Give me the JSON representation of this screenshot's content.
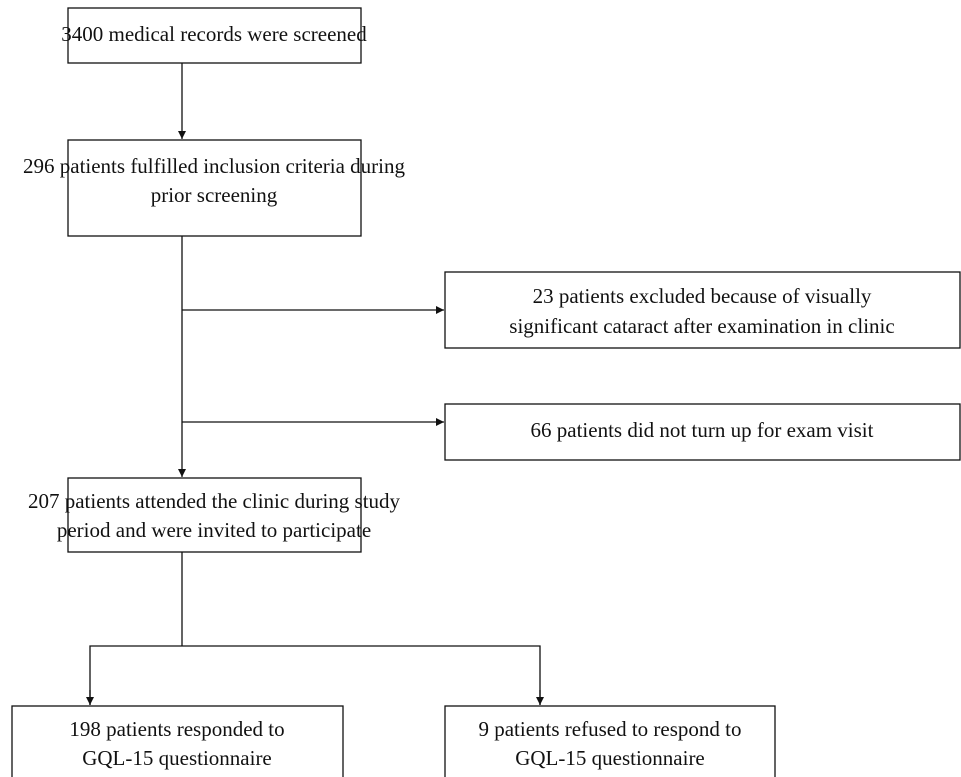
{
  "nodes": [
    {
      "lines": [
        "3400 medical records were screened"
      ]
    },
    {
      "lines": [
        "296 patients fulfilled inclusion criteria during",
        "prior screening"
      ]
    },
    {
      "lines": [
        "23 patients excluded because of visually",
        "significant cataract after examination in clinic"
      ]
    },
    {
      "lines": [
        "66 patients did not turn up for exam visit"
      ]
    },
    {
      "lines": [
        "207 patients attended the clinic during study",
        "period and were invited to participate"
      ]
    },
    {
      "lines": [
        "198 patients responded to",
        "GQL-15 questionnaire"
      ]
    },
    {
      "lines": [
        "9 patients refused to respond to",
        "GQL-15 questionnaire"
      ]
    }
  ]
}
